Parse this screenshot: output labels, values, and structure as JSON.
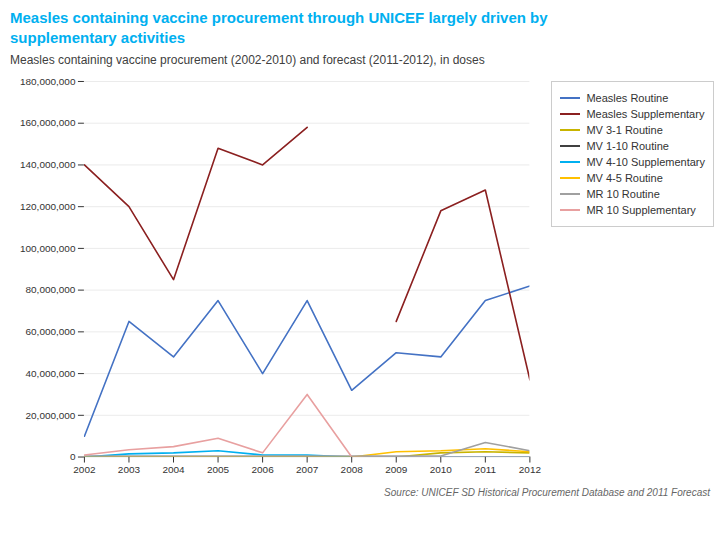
{
  "chart_data": {
    "type": "line",
    "title": "Measles containing vaccine procurement through UNICEF largely driven by\nsupplementary activities",
    "subtitle": "Measles containing vaccine procurement (2002-2010) and forecast (2011-2012), in doses",
    "source": "Source: UNICEF SD Historical Procurement Database and 2011 Forecast",
    "x": [
      2002,
      2003,
      2004,
      2005,
      2006,
      2007,
      2008,
      2009,
      2010,
      2011,
      2012
    ],
    "series": [
      {
        "name": "Measles Routine",
        "color": "#4472C4",
        "values": [
          10000000,
          65000000,
          48000000,
          75000000,
          40000000,
          75000000,
          32000000,
          50000000,
          48000000,
          75000000,
          82000000
        ]
      },
      {
        "name": "Measles Supplementary",
        "color": "#8B2020",
        "values": [
          140000000,
          120000000,
          85000000,
          148000000,
          140000000,
          158000000,
          null,
          65000000,
          118000000,
          128000000,
          37000000
        ]
      },
      {
        "name": "MV 3-1 Routine",
        "color": "#C8B400",
        "values": [
          0,
          0,
          0,
          0,
          0,
          0,
          0,
          0,
          2000000,
          2500000,
          2000000
        ]
      },
      {
        "name": "MV 1-10 Routine",
        "color": "#404040",
        "values": [
          0,
          0,
          0,
          0,
          0,
          0,
          0,
          0,
          0,
          0,
          0
        ]
      },
      {
        "name": "MV 4-10 Supplementary",
        "color": "#00B0F0",
        "values": [
          0,
          1500000,
          2000000,
          3000000,
          1000000,
          1000000,
          0,
          0,
          0,
          0,
          0
        ]
      },
      {
        "name": "MV 4-5 Routine",
        "color": "#FFC000",
        "values": [
          0,
          0,
          0,
          0,
          0,
          0,
          0,
          2500000,
          3000000,
          4000000,
          2500000
        ]
      },
      {
        "name": "MR 10 Routine",
        "color": "#A0A0A0",
        "values": [
          500000,
          500000,
          500000,
          500000,
          500000,
          500000,
          500000,
          500000,
          500000,
          7000000,
          3000000
        ]
      },
      {
        "name": "MR 10 Supplementary",
        "color": "#E8A0A0",
        "values": [
          1000000,
          3500000,
          5000000,
          9000000,
          2000000,
          30000000,
          0,
          0,
          0,
          0,
          0
        ]
      }
    ],
    "xlim": [
      2002,
      2012
    ],
    "xticks": [
      2002,
      2003,
      2004,
      2005,
      2006,
      2007,
      2008,
      2009,
      2010,
      2011,
      2012
    ],
    "ylim": [
      0,
      180000000
    ],
    "yticks": [
      0,
      {
        "value": 20000000,
        "label": "20,000,000"
      },
      {
        "value": 40000000,
        "label": "40,000,000"
      },
      {
        "value": 60000000,
        "label": "60,000,000"
      },
      {
        "value": 80000000,
        "label": "80,000,000"
      },
      {
        "value": 100000000,
        "label": "100,000,000"
      },
      {
        "value": 120000000,
        "label": "120,000,000"
      },
      {
        "value": 140000000,
        "label": "140,000,000"
      },
      {
        "value": 160000000,
        "label": "160,000,000"
      },
      {
        "value": 180000000,
        "label": "180,000,000"
      }
    ],
    "grid": "y",
    "legend": "right"
  }
}
